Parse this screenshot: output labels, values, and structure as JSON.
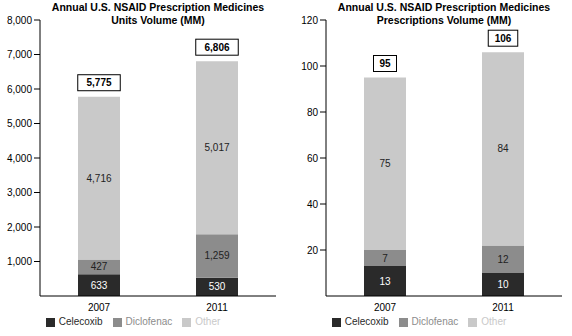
{
  "chart_data": [
    {
      "type": "bar",
      "title": "Annual U.S. NSAID Prescription Medicines\nUnits Volume (MM)",
      "categories": [
        "2007",
        "2011"
      ],
      "series": [
        {
          "name": "Celecoxib",
          "color": "#2a2a2a",
          "values": [
            633,
            530
          ]
        },
        {
          "name": "Diclofenac",
          "color": "#8c8c8c",
          "values": [
            427,
            1259
          ],
          "value_labels": [
            "427",
            "1,259"
          ]
        },
        {
          "name": "Other",
          "color": "#c9c9c9",
          "values": [
            4716,
            5017
          ],
          "value_labels": [
            "4,716",
            "5,017"
          ]
        }
      ],
      "totals": [
        5775,
        6806
      ],
      "total_labels": [
        "5,775",
        "6,806"
      ],
      "ylim": [
        0,
        8000
      ],
      "yticks": [
        {
          "value": 1000,
          "label": "1,000"
        },
        {
          "value": 2000,
          "label": "2,000"
        },
        {
          "value": 3000,
          "label": "3,000"
        },
        {
          "value": 4000,
          "label": "4,000"
        },
        {
          "value": 5000,
          "label": "5,000"
        },
        {
          "value": 6000,
          "label": "6,000"
        },
        {
          "value": 7000,
          "label": "7,000"
        },
        {
          "value": 8000,
          "label": "8,000"
        }
      ],
      "stacked": true,
      "data_labels": true,
      "legend": "bottom",
      "grid": false
    },
    {
      "type": "bar",
      "title": "Annual U.S. NSAID Prescription Medicines\nPrescriptions Volume (MM)",
      "categories": [
        "2007",
        "2011"
      ],
      "series": [
        {
          "name": "Celecoxib",
          "color": "#2a2a2a",
          "values": [
            13,
            10
          ]
        },
        {
          "name": "Diclofenac",
          "color": "#8c8c8c",
          "values": [
            7,
            12
          ]
        },
        {
          "name": "Other",
          "color": "#c9c9c9",
          "values": [
            75,
            84
          ]
        }
      ],
      "totals": [
        95,
        106
      ],
      "ylim": [
        0,
        120
      ],
      "yticks": [
        20,
        40,
        60,
        80,
        100,
        120
      ],
      "stacked": true,
      "data_labels": true,
      "legend": "bottom",
      "grid": false
    }
  ]
}
